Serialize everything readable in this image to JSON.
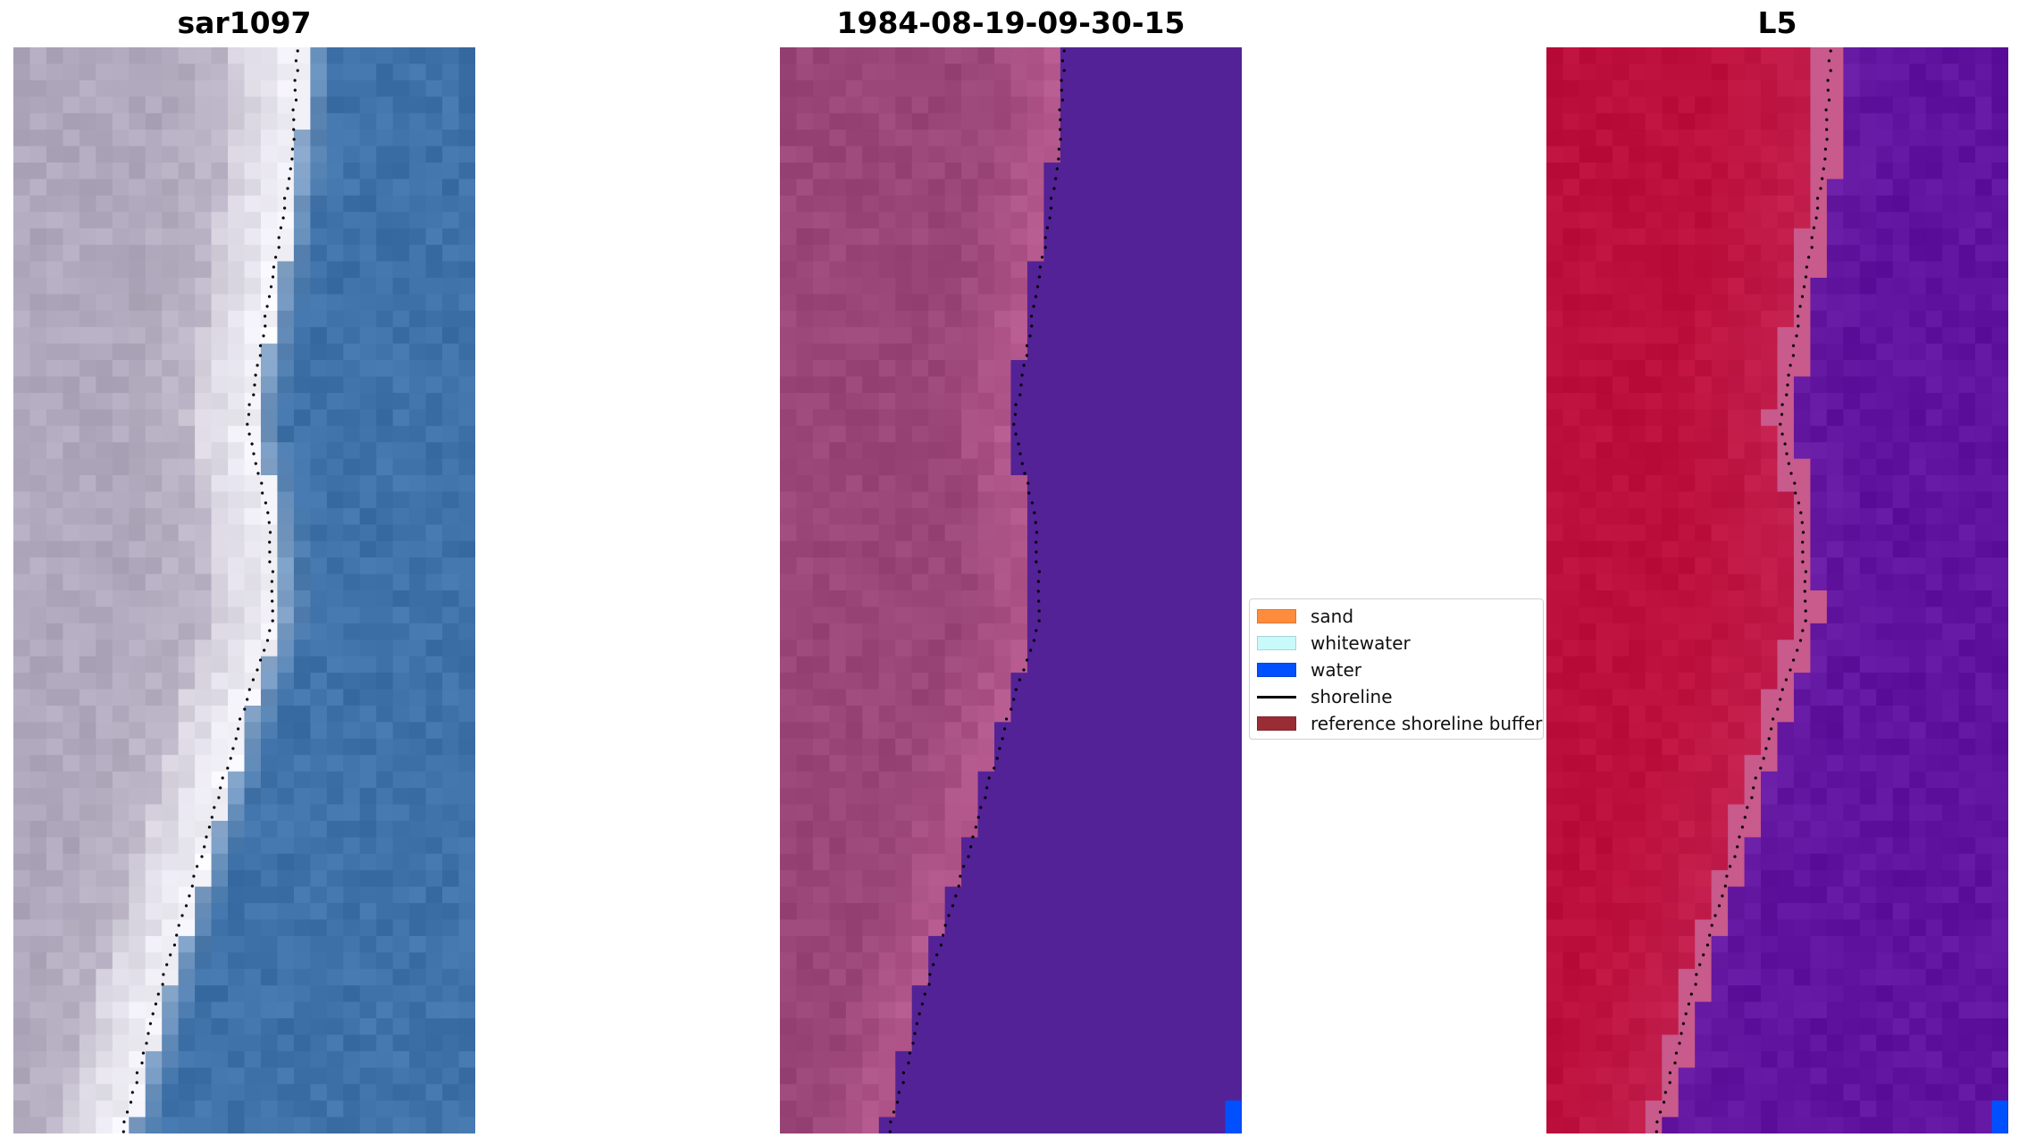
{
  "panels": [
    {
      "title": "sar1097",
      "kind": "rgb"
    },
    {
      "title": "1984-08-19-09-30-15",
      "kind": "classified"
    },
    {
      "title": "L5",
      "kind": "index"
    }
  ],
  "legend": {
    "items": [
      {
        "label": "sand",
        "color": "#ff8c3c",
        "type": "patch"
      },
      {
        "label": "whitewater",
        "color": "#c8fafa",
        "type": "patch"
      },
      {
        "label": "water",
        "color": "#0050ff",
        "type": "patch"
      },
      {
        "label": "shoreline",
        "color": "#000000",
        "type": "line"
      },
      {
        "label": "reference shoreline buffer",
        "color": "#9a2c35",
        "type": "patch"
      }
    ]
  },
  "colors": {
    "rgb_land": "#b0a8bc",
    "rgb_white": "#f3f2f8",
    "rgb_water": "#3f72a8",
    "class_land": "#9a4678",
    "class_water": "#532296",
    "index_land": "#bd0f3b",
    "index_water": "#5f139e",
    "shoreline": "#000000"
  }
}
